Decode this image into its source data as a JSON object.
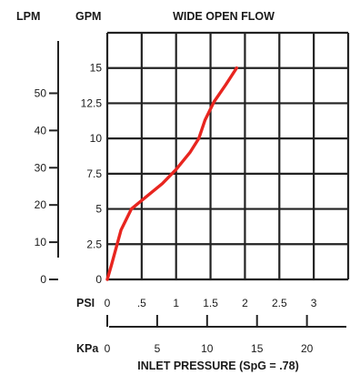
{
  "chart_data": {
    "type": "line",
    "title": "WIDE OPEN FLOW",
    "unit_labels": {
      "lpm": "LPM",
      "gpm": "GPM",
      "psi": "PSI",
      "kpa": "KPa"
    },
    "xlabel": "INLET PRESSURE (SpG = .78)",
    "psi_ticks": [
      "0",
      ".5",
      "1",
      "1.5",
      "2",
      "2.5",
      "3"
    ],
    "psi_tick_values": [
      0,
      0.5,
      1,
      1.5,
      2,
      2.5,
      3
    ],
    "kpa_ticks": [
      "0",
      "5",
      "10",
      "15",
      "20"
    ],
    "kpa_tick_values": [
      0,
      5,
      10,
      15,
      20
    ],
    "gpm_ticks": [
      "0",
      "2.5",
      "5",
      "7.5",
      "10",
      "12.5",
      "15"
    ],
    "gpm_tick_values": [
      0,
      2.5,
      5,
      7.5,
      10,
      12.5,
      15
    ],
    "lpm_ticks": [
      "0",
      "10",
      "20",
      "30",
      "40",
      "50"
    ],
    "lpm_tick_values": [
      0,
      10,
      20,
      30,
      40,
      50
    ],
    "xlim": [
      0,
      3.5
    ],
    "ylim": [
      0,
      17.5
    ],
    "grid": true,
    "series": [
      {
        "color": "#e8251f",
        "x": [
          0,
          0.06,
          0.2,
          0.35,
          0.55,
          0.8,
          1.0,
          1.2,
          1.33,
          1.42,
          1.55,
          1.72,
          1.88
        ],
        "y": [
          0,
          1.0,
          3.5,
          5.0,
          5.8,
          6.8,
          7.8,
          9.0,
          10.0,
          11.3,
          12.6,
          13.8,
          15.0
        ]
      }
    ]
  }
}
